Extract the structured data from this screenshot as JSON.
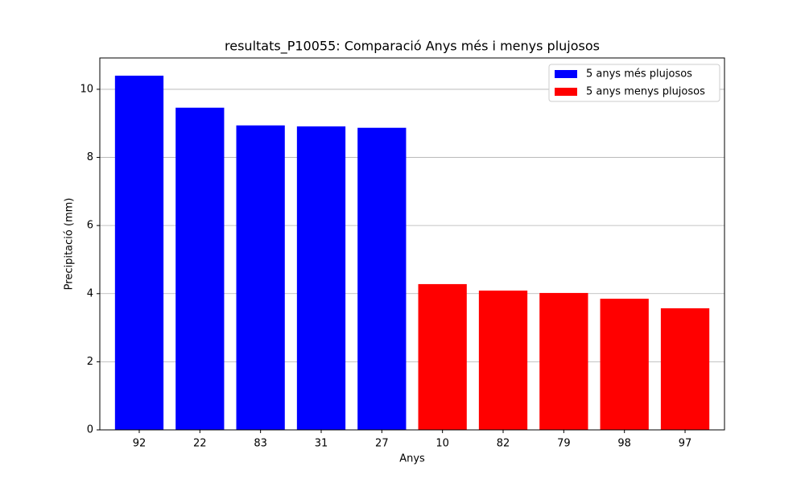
{
  "chart_data": {
    "type": "bar",
    "title": "resultats_P10055: Comparació Anys més i menys plujosos",
    "xlabel": "Anys",
    "ylabel": "Precipitació (mm)",
    "categories": [
      "92",
      "22",
      "83",
      "31",
      "27",
      "10",
      "82",
      "79",
      "98",
      "97"
    ],
    "series": [
      {
        "name": "5 anys més plujosos",
        "color": "#0000ff",
        "values": [
          10.4,
          9.46,
          8.94,
          8.91,
          8.87,
          null,
          null,
          null,
          null,
          null
        ]
      },
      {
        "name": "5 anys menys plujosos",
        "color": "#ff0000",
        "values": [
          null,
          null,
          null,
          null,
          null,
          4.28,
          4.09,
          4.02,
          3.85,
          3.57
        ]
      }
    ],
    "ylim": [
      0,
      10.92
    ],
    "yticks": [
      0,
      2,
      4,
      6,
      8,
      10
    ],
    "grid": "y",
    "legend": "upper right"
  }
}
